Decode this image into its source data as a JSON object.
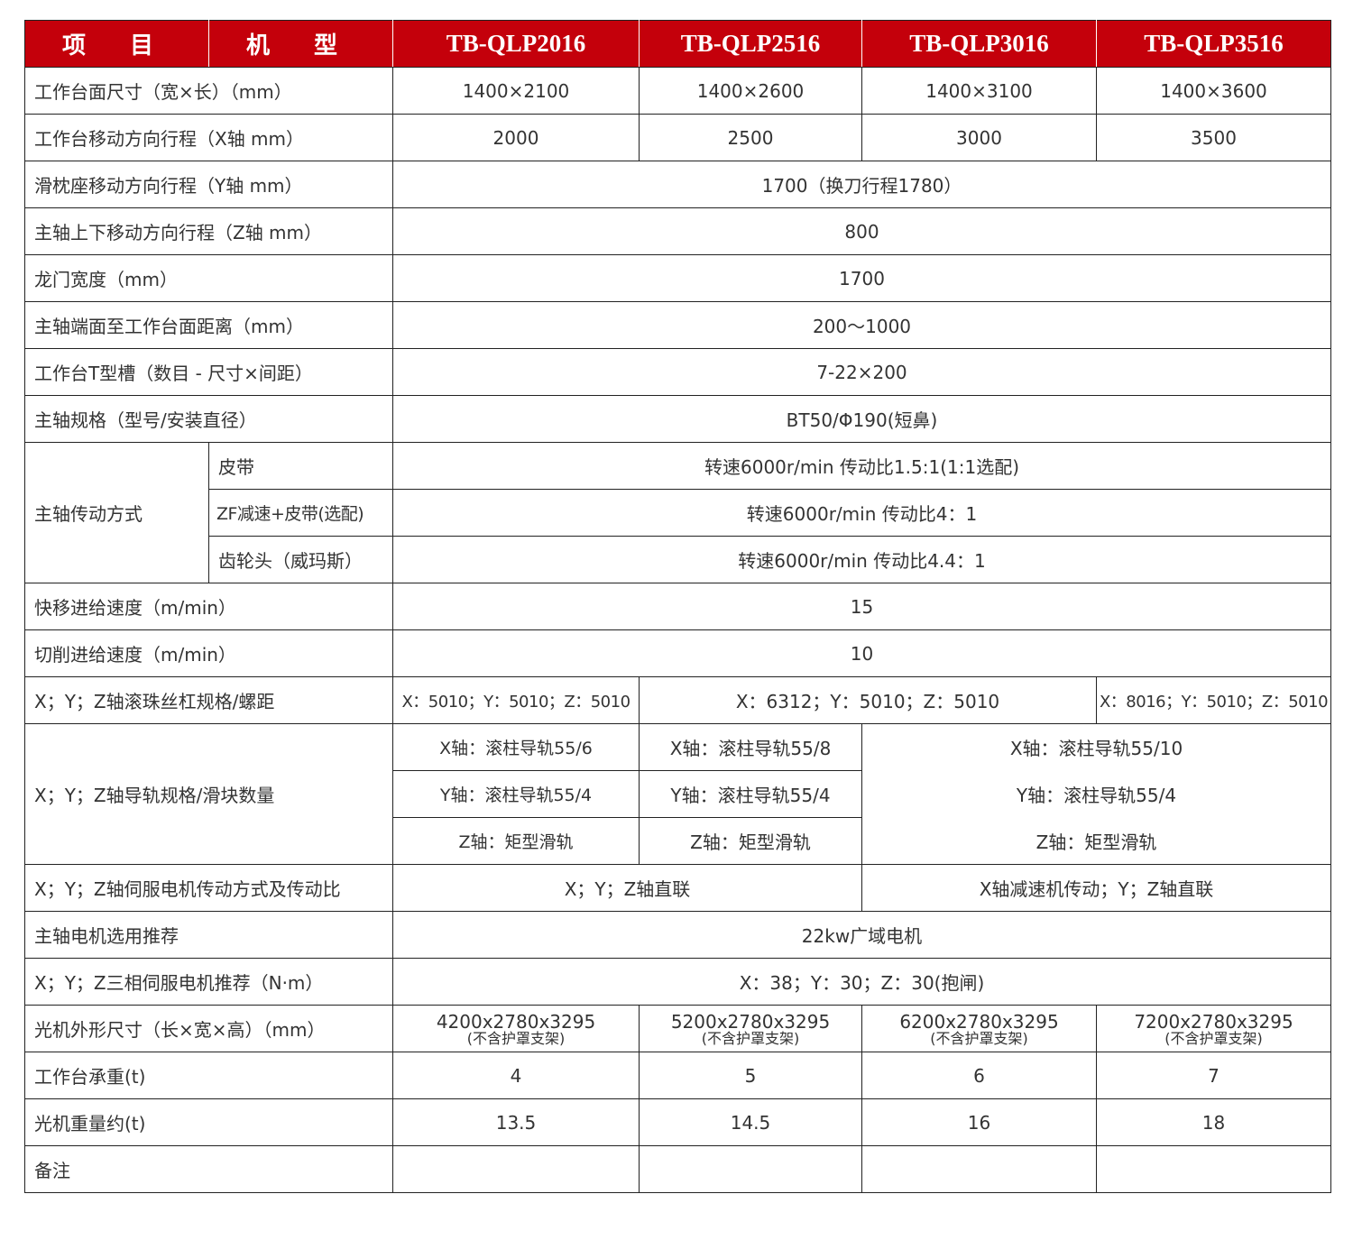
{
  "header": {
    "item": "项 目",
    "model": "机 型",
    "models": [
      "TB-QLP2016",
      "TB-QLP2516",
      "TB-QLP3016",
      "TB-QLP3516"
    ]
  },
  "rows": {
    "table_size": {
      "label": "工作台面尺寸（宽×长）（mm）",
      "values": [
        "1400×2100",
        "1400×2600",
        "1400×3100",
        "1400×3600"
      ]
    },
    "x_travel": {
      "label": "工作台移动方向行程（X轴 mm）",
      "values": [
        "2000",
        "2500",
        "3000",
        "3500"
      ]
    },
    "y_travel": {
      "label": "滑枕座移动方向行程（Y轴 mm）",
      "value": "1700（换刀行程1780）"
    },
    "z_travel": {
      "label": "主轴上下移动方向行程（Z轴 mm）",
      "value": "800"
    },
    "gantry_width": {
      "label": "龙门宽度（mm）",
      "value": "1700"
    },
    "spindle_to_table": {
      "label": "主轴端面至工作台面距离（mm）",
      "value": "200～1000"
    },
    "t_slot": {
      "label": "工作台T型槽（数目 - 尺寸×间距）",
      "value": "7-22×200"
    },
    "spindle_spec": {
      "label": "主轴规格（型号/安装直径）",
      "value": "BT50/Φ190(短鼻)"
    },
    "spindle_drive": {
      "label": "主轴传动方式",
      "options": [
        {
          "label": "皮带",
          "value": "转速6000r/min 传动比1.5:1(1:1选配)"
        },
        {
          "label": "ZF减速+皮带(选配)",
          "value": "转速6000r/min 传动比4：1"
        },
        {
          "label": "齿轮头（威玛斯）",
          "value": "转速6000r/min 传动比4.4：1"
        }
      ]
    },
    "rapid_feed": {
      "label": "快移进给速度（m/min）",
      "value": "15"
    },
    "cutting_feed": {
      "label": "切削进给速度（m/min）",
      "value": "10"
    },
    "ballscrew": {
      "label": "X；Y；Z轴滚珠丝杠规格/螺距",
      "values": [
        "X：5010；Y：5010；Z：5010",
        "X：6312；Y：5010；Z：5010",
        "X：8016；Y：5010；Z：5010"
      ]
    },
    "guide": {
      "label": "X；Y；Z轴导轨规格/滑块数量",
      "c1": [
        "X轴：滚柱导轨55/6",
        "Y轴：滚柱导轨55/4",
        "Z轴：矩型滑轨"
      ],
      "c2": [
        "X轴：滚柱导轨55/8",
        "Y轴：滚柱导轨55/4",
        "Z轴：矩型滑轨"
      ],
      "c3": [
        "X轴：滚柱导轨55/10",
        "Y轴：滚柱导轨55/4",
        "Z轴：矩型滑轨"
      ]
    },
    "servo_drive": {
      "label": "X；Y；Z轴伺服电机传动方式及传动比",
      "values": [
        "X；Y；Z轴直联",
        "X轴减速机传动；Y；Z轴直联"
      ]
    },
    "spindle_motor": {
      "label": "主轴电机选用推荐",
      "value": "22kw广域电机"
    },
    "servo_motor": {
      "label": "X；Y；Z三相伺服电机推荐（N·m）",
      "value": "X：38；Y：30；Z：30(抱闸)"
    },
    "dimensions": {
      "label": "光机外形尺寸（长×宽×高）（mm）",
      "values": [
        "4200x2780x3295",
        "5200x2780x3295",
        "6200x2780x3295",
        "7200x2780x3295"
      ],
      "note": "(不含护罩支架)"
    },
    "table_load": {
      "label": "工作台承重(t)",
      "values": [
        "4",
        "5",
        "6",
        "7"
      ]
    },
    "machine_weight": {
      "label": "光机重量约(t)",
      "values": [
        "13.5",
        "14.5",
        "16",
        "18"
      ]
    },
    "remarks": {
      "label": "备注"
    }
  },
  "colors": {
    "header_bg": "#c4000b",
    "header_text": "#ffffff",
    "border": "#222222",
    "text": "#333333"
  }
}
